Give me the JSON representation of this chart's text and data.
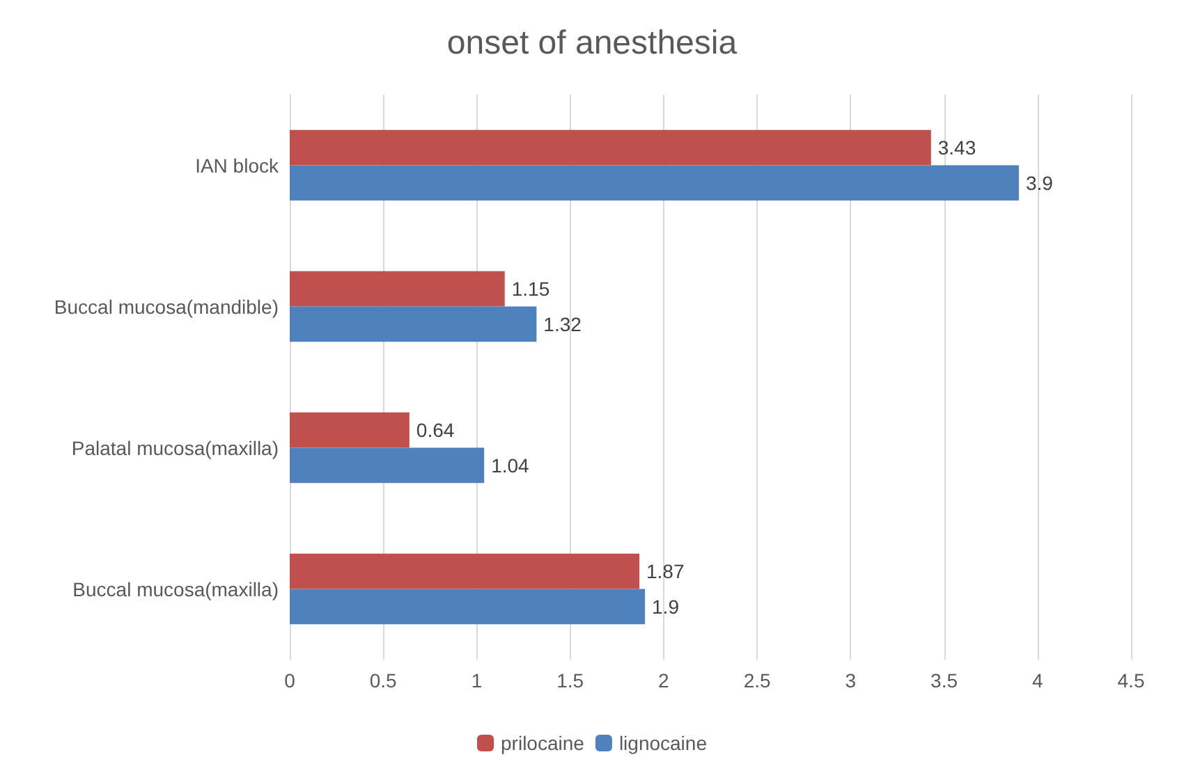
{
  "chart_data": {
    "type": "bar",
    "orientation": "horizontal",
    "title": "onset of anesthesia",
    "categories": [
      "IAN block",
      "Buccal mucosa(mandible)",
      "Palatal mucosa(maxilla)",
      "Buccal mucosa(maxilla)"
    ],
    "series": [
      {
        "name": "prilocaine",
        "color": "#c0504d",
        "values": [
          3.43,
          1.15,
          0.64,
          1.87
        ]
      },
      {
        "name": "lignocaine",
        "color": "#4f81bd",
        "values": [
          3.9,
          1.32,
          1.04,
          1.9
        ]
      }
    ],
    "xlim": [
      0,
      4.5
    ],
    "xticks": [
      0,
      0.5,
      1,
      1.5,
      2,
      2.5,
      3,
      3.5,
      4,
      4.5
    ],
    "grid": "x",
    "legend": "bottom",
    "data_labels": true
  }
}
